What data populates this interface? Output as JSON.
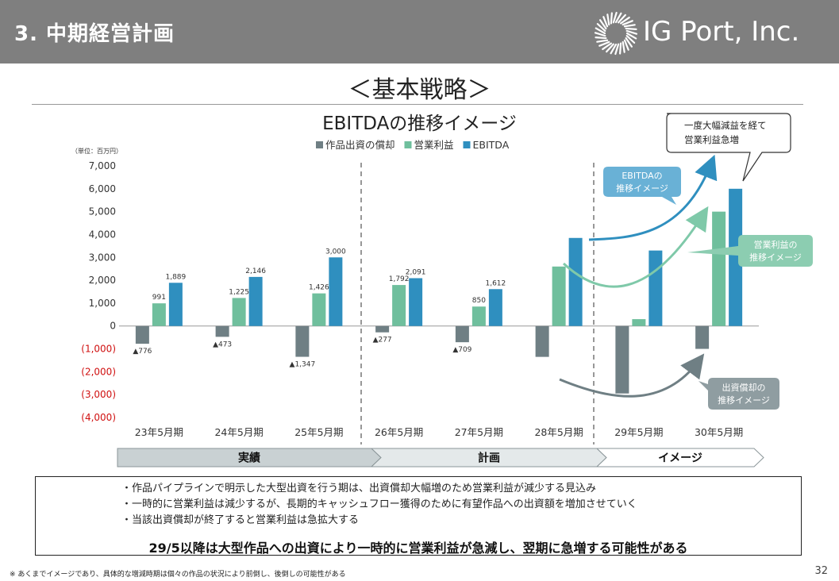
{
  "header": {
    "section_title": "3. 中期経営計画",
    "logo_text": "IG Port, Inc."
  },
  "strategy_title": "＜基本戦略＞",
  "chart_data": {
    "type": "bar",
    "title": "EBITDAの推移イメージ",
    "unit_label": "（単位：百万円）",
    "categories": [
      "23年5月期",
      "24年5月期",
      "25年5月期",
      "26年5月期",
      "27年5月期",
      "28年5月期",
      "29年5月期",
      "30年5月期"
    ],
    "ylim": [
      -4000,
      7000
    ],
    "y_ticks": [
      {
        "v": 7000,
        "label": "7,000"
      },
      {
        "v": 6000,
        "label": "6,000"
      },
      {
        "v": 5000,
        "label": "5,000"
      },
      {
        "v": 4000,
        "label": "4,000"
      },
      {
        "v": 3000,
        "label": "3,000"
      },
      {
        "v": 2000,
        "label": "2,000"
      },
      {
        "v": 1000,
        "label": "1,000"
      },
      {
        "v": 0,
        "label": "0"
      },
      {
        "v": -1000,
        "label": "(1,000)"
      },
      {
        "v": -2000,
        "label": "(2,000)"
      },
      {
        "v": -3000,
        "label": "(3,000)"
      },
      {
        "v": -4000,
        "label": "(4,000)"
      }
    ],
    "legend_position": "top",
    "series": [
      {
        "name": "作品出資の償却",
        "color": "#6f7f84",
        "values": [
          -776,
          -473,
          -1347,
          -277,
          -709,
          -1350,
          -2950,
          -1000
        ],
        "labels": [
          "▲776",
          "▲473",
          "▲1,347",
          "▲277",
          "▲709",
          "",
          "",
          ""
        ]
      },
      {
        "name": "営業利益",
        "color": "#6fbf9d",
        "values": [
          991,
          1225,
          1426,
          1792,
          850,
          2600,
          300,
          5000
        ],
        "labels": [
          "991",
          "1,225",
          "1,426",
          "1,792",
          "850",
          "",
          "",
          ""
        ]
      },
      {
        "name": "EBITDA",
        "color": "#2f8fbf",
        "values": [
          1889,
          2146,
          3000,
          2091,
          1612,
          3850,
          3300,
          6000
        ],
        "labels": [
          "1,889",
          "2,146",
          "3,000",
          "2,091",
          "1,612",
          "",
          "",
          ""
        ]
      }
    ],
    "phases": [
      {
        "label": "実績",
        "from": 0,
        "to": 2
      },
      {
        "label": "計画",
        "from": 3,
        "to": 5
      },
      {
        "label": "イメージ",
        "from": 6,
        "to": 7
      }
    ],
    "annotations": {
      "callout": [
        "一度大幅減益を経て",
        "営業利益急増"
      ],
      "ebitda_trend": [
        "EBITDAの",
        "推移イメージ"
      ],
      "op_trend": [
        "営業利益の",
        "推移イメージ"
      ],
      "amort_trend": [
        "出資償却の",
        "推移イメージ"
      ]
    }
  },
  "summary": {
    "bullets": [
      "作品パイプラインで明示した大型出資を行う期は、出資償却大幅増のため営業利益が減少する見込み",
      "一時的に営業利益は減少するが、長期的キャッシュフロー獲得のために有望作品への出資額を増加させていく",
      "当該出資償却が終了すると営業利益は急拡大する"
    ],
    "conclusion": "29/5以降は大型作品への出資により一時的に営業利益が急減し、翌期に急増する可能性がある"
  },
  "footer_note": "※ あくまでイメージであり、具体的な増減時期は個々の作品の状況により前倒し、後倒しの可能性がある",
  "page_number": "32"
}
